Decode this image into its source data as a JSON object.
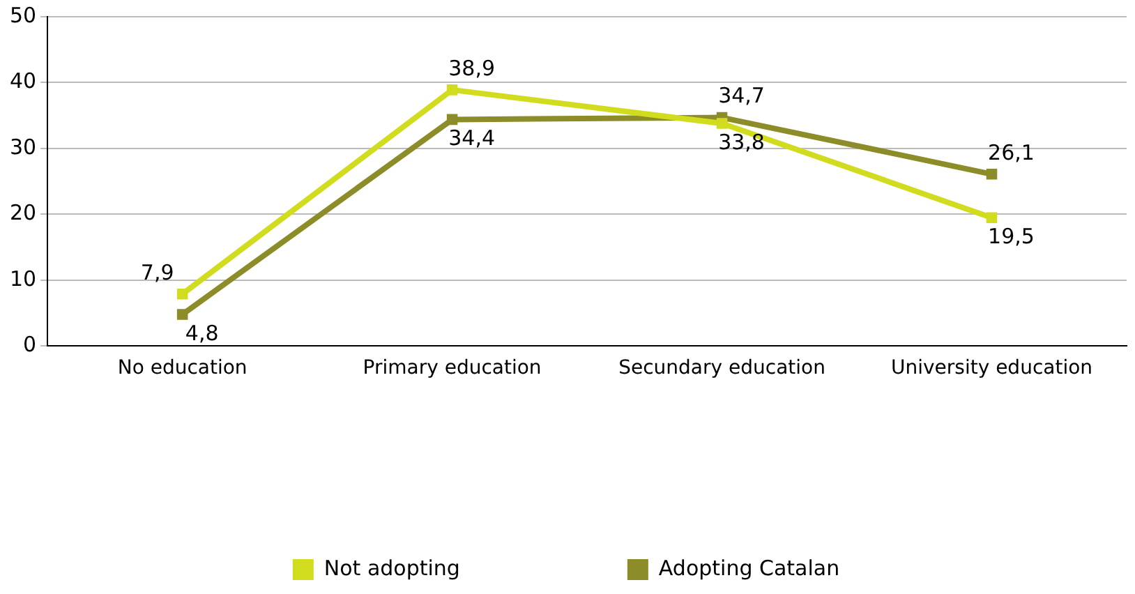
{
  "chart_data": {
    "type": "line",
    "categories": [
      "No education",
      "Primary education",
      "Secundary education",
      "University education"
    ],
    "series": [
      {
        "name": "Not adopting",
        "color": "#d2dc1e",
        "values": [
          7.9,
          38.9,
          33.8,
          19.5
        ],
        "value_labels": [
          "7,9",
          "38,9",
          "33,8",
          "19,5"
        ]
      },
      {
        "name": "Adopting Catalan",
        "color": "#8c8c28",
        "values": [
          4.8,
          34.4,
          34.7,
          26.1
        ],
        "value_labels": [
          "4,8",
          "34,4",
          "34,7",
          "26,1"
        ]
      }
    ],
    "ylim": [
      0,
      50
    ],
    "yticks": [
      0,
      10,
      20,
      30,
      40,
      50
    ],
    "grid": "y",
    "legend": "bottom",
    "marker": "square",
    "line_style": "solid"
  }
}
